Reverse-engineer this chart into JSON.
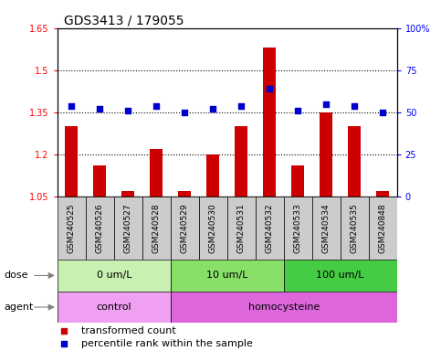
{
  "title": "GDS3413 / 179055",
  "samples": [
    "GSM240525",
    "GSM240526",
    "GSM240527",
    "GSM240528",
    "GSM240529",
    "GSM240530",
    "GSM240531",
    "GSM240532",
    "GSM240533",
    "GSM240534",
    "GSM240535",
    "GSM240848"
  ],
  "transformed_count": [
    1.3,
    1.16,
    1.07,
    1.22,
    1.07,
    1.2,
    1.3,
    1.58,
    1.16,
    1.35,
    1.3,
    1.07
  ],
  "percentile_rank": [
    54,
    52,
    51,
    54,
    50,
    52,
    54,
    64,
    51,
    55,
    54,
    50
  ],
  "ylim_left": [
    1.05,
    1.65
  ],
  "ylim_right": [
    0,
    100
  ],
  "yticks_left": [
    1.05,
    1.2,
    1.35,
    1.5,
    1.65
  ],
  "yticks_right": [
    0,
    25,
    50,
    75,
    100
  ],
  "ytick_labels_left": [
    "1.05",
    "1.2",
    "1.35",
    "1.5",
    "1.65"
  ],
  "ytick_labels_right": [
    "0",
    "25",
    "50",
    "75",
    "100%"
  ],
  "hlines": [
    1.2,
    1.35,
    1.5
  ],
  "dose_groups": [
    {
      "label": "0 um/L",
      "start": 0,
      "end": 4,
      "color": "#c8f0b0"
    },
    {
      "label": "10 um/L",
      "start": 4,
      "end": 8,
      "color": "#88e068"
    },
    {
      "label": "100 um/L",
      "start": 8,
      "end": 12,
      "color": "#44cc44"
    }
  ],
  "agent_groups": [
    {
      "label": "control",
      "start": 0,
      "end": 4,
      "color": "#f0a0f0"
    },
    {
      "label": "homocysteine",
      "start": 4,
      "end": 12,
      "color": "#dd66dd"
    }
  ],
  "bar_color": "#cc0000",
  "dot_color": "#0000cc",
  "bar_width": 0.45,
  "bg_color": "#ffffff",
  "grid_color": "#000000",
  "cell_color": "#cccccc",
  "title_fontsize": 10,
  "tick_fontsize": 7,
  "label_fontsize": 8,
  "legend_fontsize": 8,
  "sample_fontsize": 6.5
}
